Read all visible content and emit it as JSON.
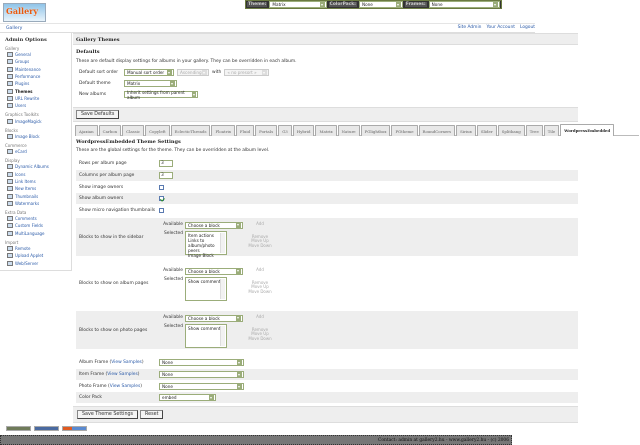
{
  "topbar": {
    "theme_label": "Theme:",
    "theme_value": "Matrix",
    "colorpack_label": "ColorPack:",
    "colorpack_value": "None",
    "frames_label": "Frames:",
    "frames_value": "None"
  },
  "logo": {
    "text": "Gallery"
  },
  "breadcrumb": "Gallery",
  "toplinks": [
    "Site Admin",
    "Your Account",
    "Logout"
  ],
  "sidebar": {
    "title": "Admin Options",
    "groups": [
      {
        "name": "Gallery",
        "items": [
          {
            "label": "General",
            "icon": "general-icon"
          },
          {
            "label": "Groups",
            "icon": "groups-icon"
          },
          {
            "label": "Maintenance",
            "icon": "maintenance-icon"
          },
          {
            "label": "Performance",
            "icon": "performance-icon"
          },
          {
            "label": "Plugins",
            "icon": "plugins-icon"
          },
          {
            "label": "Themes",
            "icon": "themes-icon",
            "current": true
          },
          {
            "label": "URL Rewrite",
            "icon": "url-rewrite-icon"
          },
          {
            "label": "Users",
            "icon": "users-icon"
          }
        ]
      },
      {
        "name": "Graphics Toolkits",
        "items": [
          {
            "label": "ImageMagick",
            "icon": "imagemagick-icon"
          }
        ]
      },
      {
        "name": "Blocks",
        "items": [
          {
            "label": "Image Block",
            "icon": "image-block-icon"
          }
        ]
      },
      {
        "name": "Commerce",
        "items": [
          {
            "label": "eCard",
            "icon": "ecard-icon"
          }
        ]
      },
      {
        "name": "Display",
        "items": [
          {
            "label": "Dynamic Albums",
            "icon": "dynamic-albums-icon"
          },
          {
            "label": "Icons",
            "icon": "icons-icon"
          },
          {
            "label": "Link Items",
            "icon": "link-items-icon"
          },
          {
            "label": "New Items",
            "icon": "new-items-icon"
          },
          {
            "label": "Thumbnails",
            "icon": "thumbnails-icon"
          },
          {
            "label": "Watermarks",
            "icon": "watermarks-icon"
          }
        ]
      },
      {
        "name": "Extra Data",
        "items": [
          {
            "label": "Comments",
            "icon": "comments-icon"
          },
          {
            "label": "Custom Fields",
            "icon": "custom-fields-icon"
          },
          {
            "label": "MultiLanguage",
            "icon": "multilanguage-icon"
          }
        ]
      },
      {
        "name": "Import",
        "items": [
          {
            "label": "Remote",
            "icon": "remote-icon"
          },
          {
            "label": "Upload Applet",
            "icon": "upload-applet-icon"
          },
          {
            "label": "Web/Server",
            "icon": "web-server-icon"
          }
        ]
      }
    ]
  },
  "main": {
    "title": "Gallery Themes",
    "defaults": {
      "heading": "Defaults",
      "description": "These are default display settings for albums in your gallery. They can be overridden in each album.",
      "sort_label": "Default sort order",
      "sort_value": "Manual sort order",
      "sort_dir": "Ascending",
      "with_label": "with",
      "with_value": "« no presort »",
      "theme_label": "Default theme",
      "theme_value": "Matrix",
      "new_label": "New albums",
      "new_value": "Inherit settings from parent album",
      "save_button": "Save Defaults"
    },
    "tabs": [
      "Ajaxian",
      "Carbon",
      "Classic",
      "Copyleft",
      "EclecticThreads",
      "Floatrix",
      "Fluid",
      "PortaIs",
      "G3",
      "Hybrid",
      "Matrix",
      "Nature",
      "PGlightbox",
      "PGtheme",
      "RoundCorners",
      "Siriux",
      "Slider",
      "Splitbang",
      "Tree",
      "Tile",
      "WordpressEmbedded"
    ],
    "active_tab": "WordpressEmbedded",
    "settings": {
      "heading": "WordpressEmbedded Theme Settings",
      "description": "These are the global settings for the theme. They can be overridden at the album level.",
      "rows_label": "Rows per album page",
      "rows_value": "3",
      "cols_label": "Columns per album page",
      "cols_value": "3",
      "image_owners_label": "Show image owners",
      "image_owners": false,
      "album_owners_label": "Show album owners",
      "album_owners": true,
      "micro_label": "Show micro navigation thumbnails",
      "micro": false,
      "available_label": "Available",
      "selected_label": "Selected",
      "choose": "Choose a block",
      "add": "Add",
      "remove": "Remove",
      "move_up": "Move Up",
      "move_down": "Move Down",
      "sidebar_label": "Blocks to show in the sidebar",
      "sidebar_selected": [
        "Item actions",
        "Links to album/photo peers",
        "Image Block"
      ],
      "album_label": "Blocks to show on album pages",
      "album_selected": [
        "Show comments"
      ],
      "photo_label": "Blocks to show on photo pages",
      "photo_selected": [
        "Show comments"
      ],
      "view_samples": "View Samples",
      "album_frame_label": "Album Frame",
      "album_frame": "None",
      "item_frame_label": "Item Frame",
      "item_frame": "None",
      "photo_frame_label": "Photo Frame",
      "photo_frame": "None",
      "color_pack_label": "Color Pack",
      "color_pack": "embed",
      "save_button": "Save Theme Settings",
      "reset_button": "Reset"
    }
  },
  "footer": "Contact: admin at gallery2.hu - www.gallery2.hu - (c) 2006"
}
